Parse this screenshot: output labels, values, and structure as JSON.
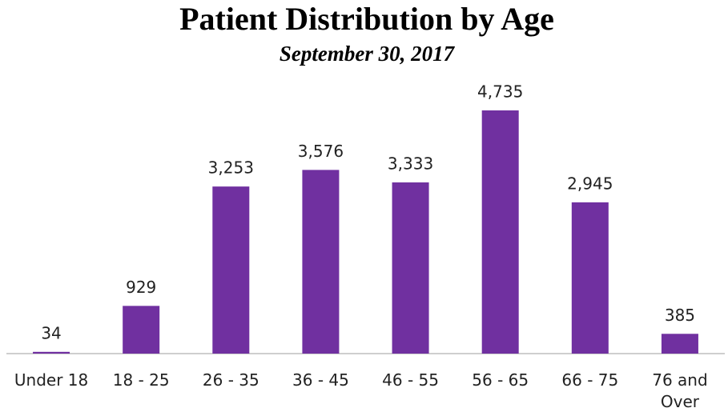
{
  "chart_data": {
    "type": "bar",
    "title": "Patient Distribution by Age",
    "subtitle": "September 30, 2017",
    "categories": [
      "Under 18",
      "18 - 25",
      "26 - 35",
      "36 - 45",
      "46 - 55",
      "56 - 65",
      "66 - 75",
      "76 and Over"
    ],
    "values": [
      34,
      929,
      3253,
      3576,
      3333,
      4735,
      2945,
      385
    ],
    "value_labels": [
      "34",
      "929",
      "3,253",
      "3,576",
      "3,333",
      "4,735",
      "2,945",
      "385"
    ],
    "color": "#7030a0"
  }
}
